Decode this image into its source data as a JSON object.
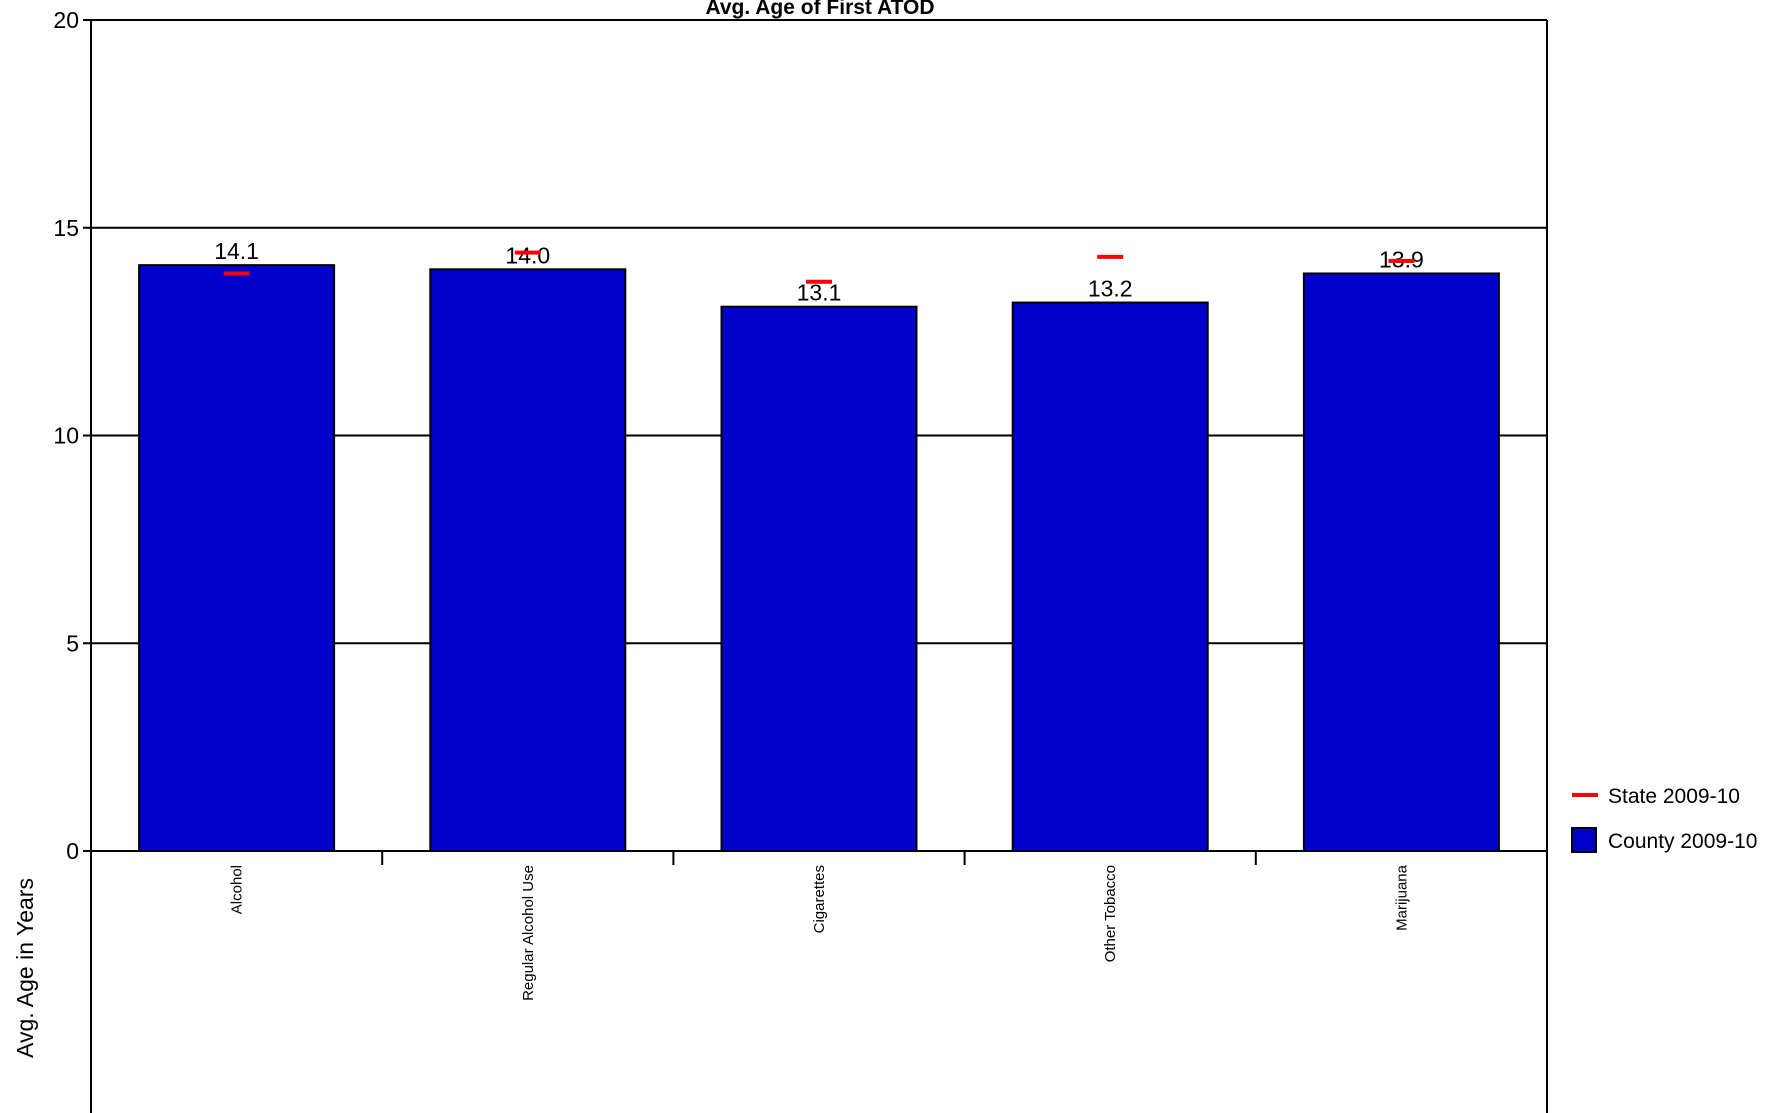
{
  "chart_data": {
    "type": "bar",
    "title": "Avg. Age of First ATOD",
    "xlabel": "",
    "ylabel": "Avg. Age in Years",
    "categories": [
      "Alcohol",
      "Regular Alcohol Use",
      "Cigarettes",
      "Other Tobacco",
      "Marijuana"
    ],
    "series": [
      {
        "name": "County 2009-10",
        "kind": "bar",
        "color": "#0000cc",
        "values": [
          14.1,
          14.0,
          13.1,
          13.2,
          13.9
        ],
        "labels": [
          "14.1",
          "14.0",
          "13.1",
          "13.2",
          "13.9"
        ]
      },
      {
        "name": "State 2009-10",
        "kind": "marker",
        "color": "#ff0000",
        "values": [
          13.9,
          14.4,
          13.7,
          14.3,
          14.2
        ]
      }
    ],
    "ylim": [
      0,
      20
    ],
    "yticks": [
      "0",
      "5",
      "10",
      "15",
      "20"
    ],
    "grid": true,
    "legend_position": "right"
  }
}
